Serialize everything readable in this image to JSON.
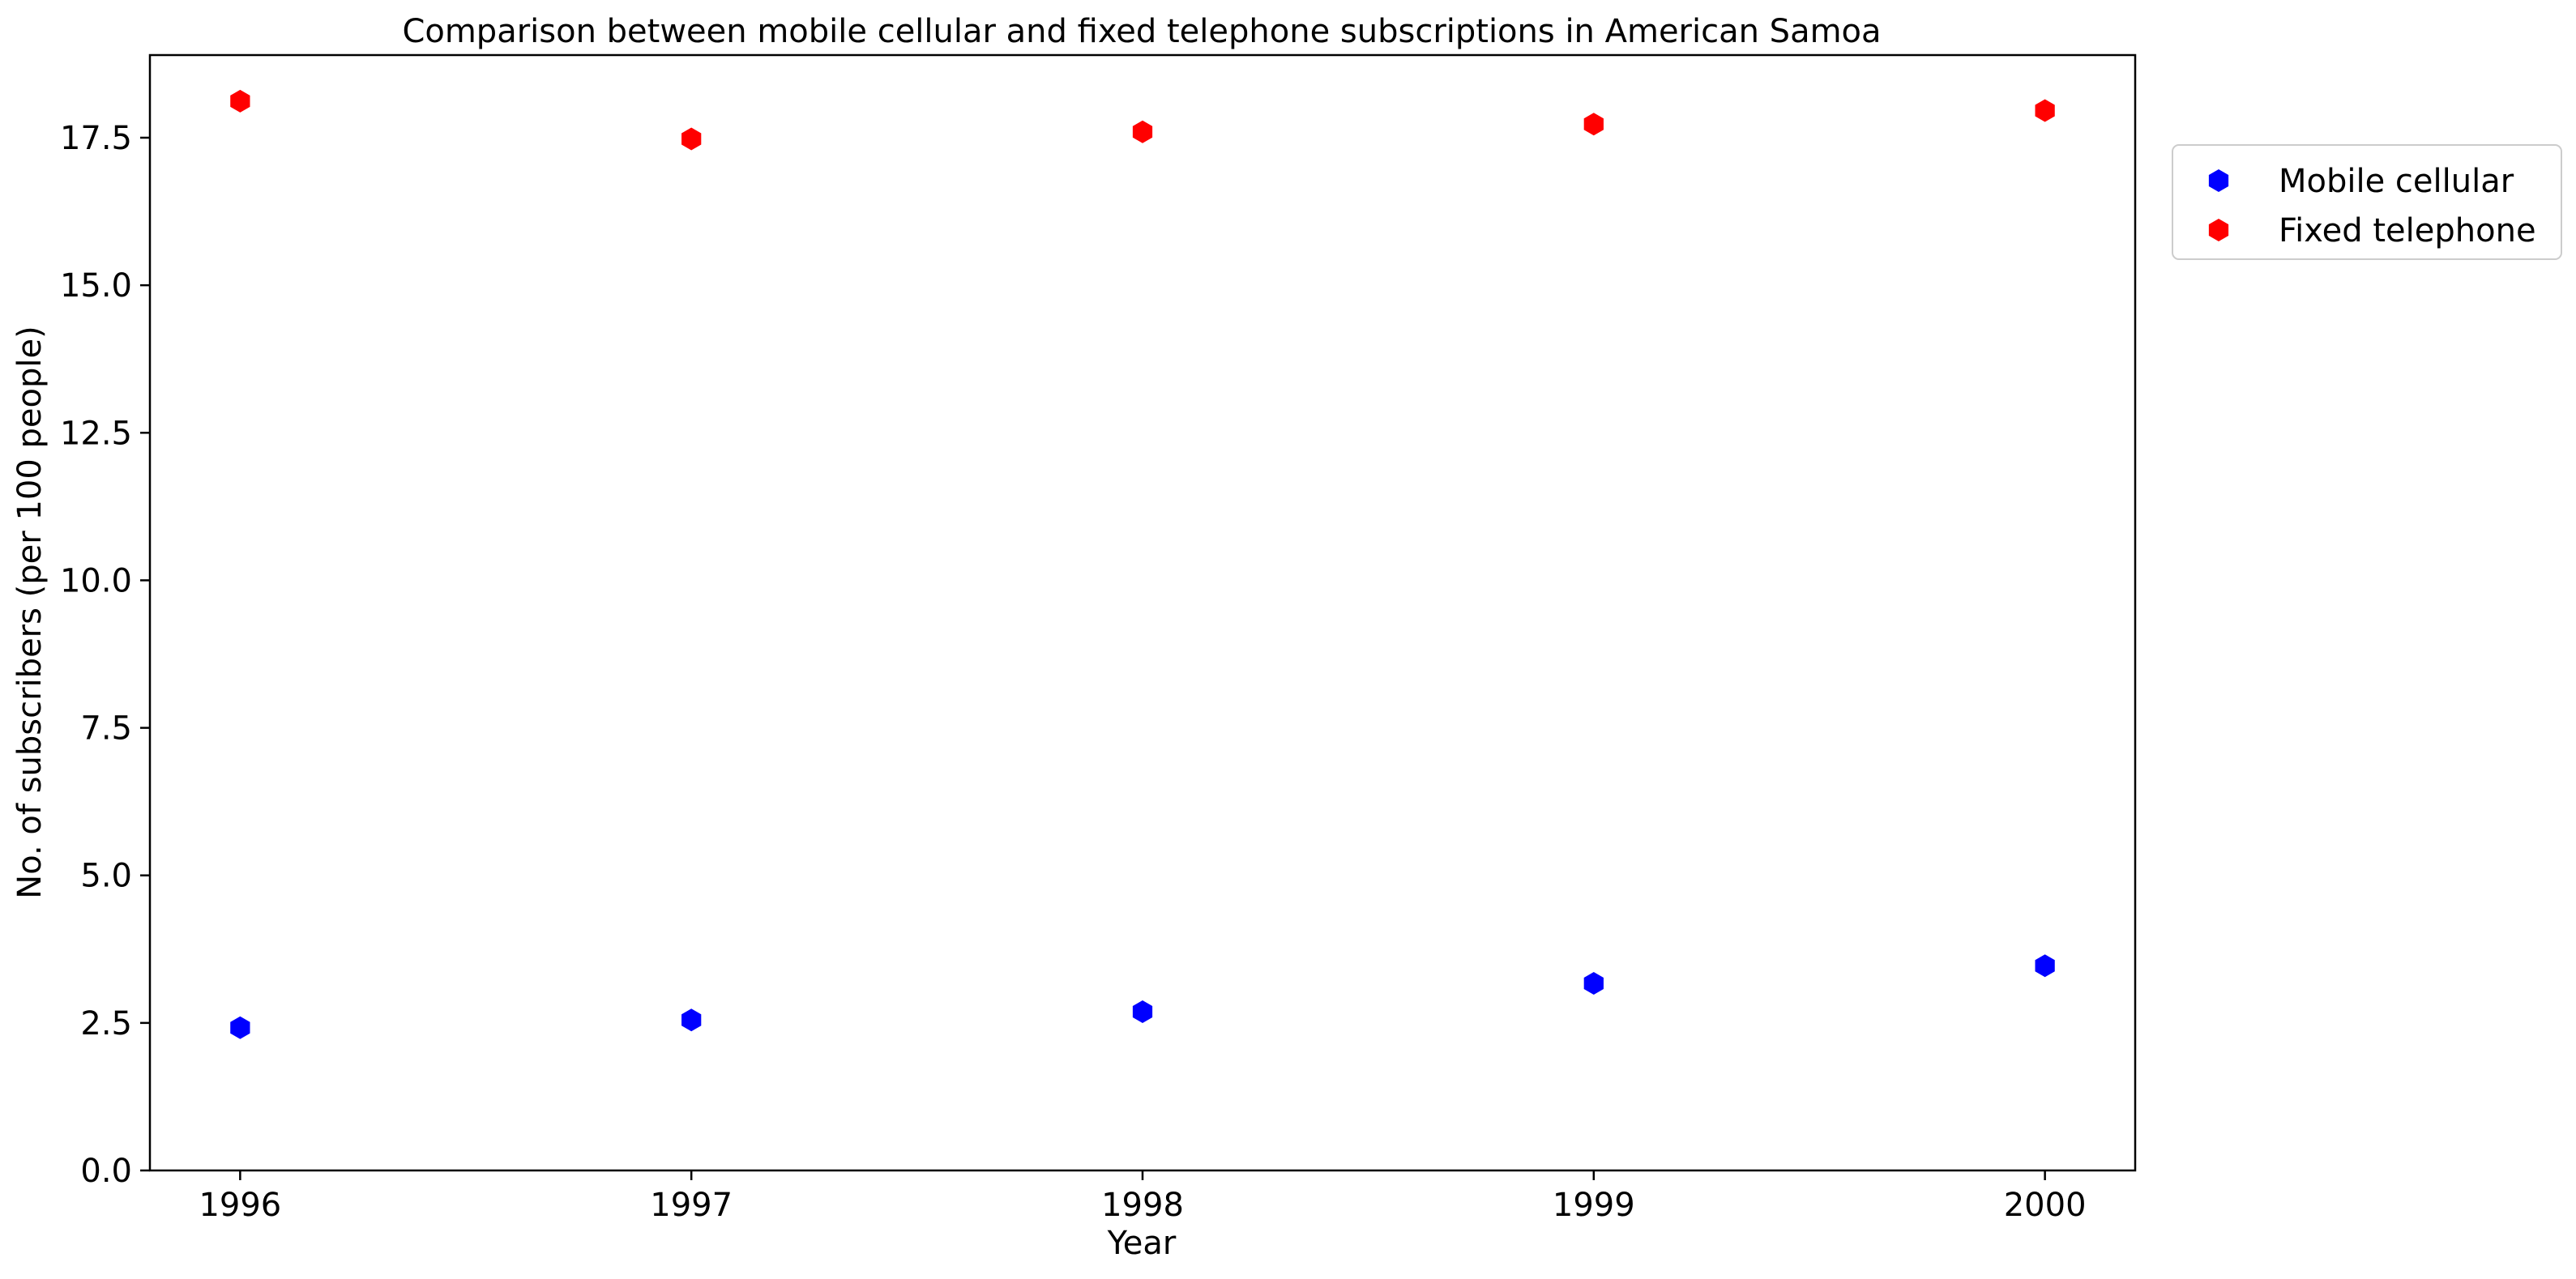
{
  "chart_data": {
    "type": "scatter",
    "title": "Comparison between mobile cellular and fixed telephone subscriptions in American Samoa",
    "xlabel": "Year",
    "ylabel": "No. of subscribers (per 100 people)",
    "x": [
      1996,
      1997,
      1998,
      1999,
      2000
    ],
    "x_tick_labels": [
      "1996",
      "1997",
      "1998",
      "1999",
      "2000"
    ],
    "xlim": [
      1995.8,
      2000.2
    ],
    "ylim": [
      0,
      18.9
    ],
    "y_ticks": [
      0.0,
      2.5,
      5.0,
      7.5,
      10.0,
      12.5,
      15.0,
      17.5
    ],
    "y_tick_labels": [
      "0.0",
      "2.5",
      "5.0",
      "7.5",
      "10.0",
      "12.5",
      "15.0",
      "17.5"
    ],
    "grid": false,
    "legend_position": "outside-top-right",
    "marker": "hexagon",
    "series": [
      {
        "name": "Mobile cellular",
        "color": "#0000ff",
        "values": [
          2.42,
          2.55,
          2.69,
          3.17,
          3.47
        ]
      },
      {
        "name": "Fixed telephone",
        "color": "#ff0000",
        "values": [
          18.12,
          17.48,
          17.6,
          17.73,
          17.96
        ]
      }
    ]
  }
}
